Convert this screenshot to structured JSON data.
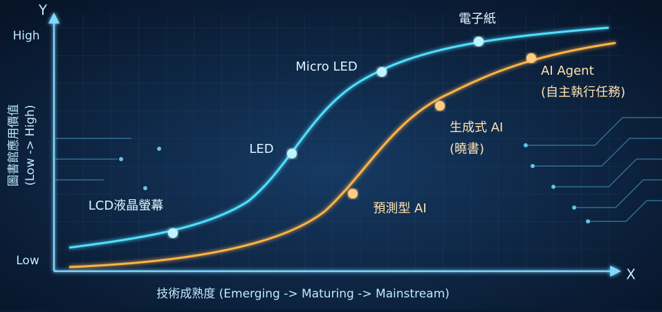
{
  "axes": {
    "y_symbol": "Y",
    "x_symbol": "X",
    "y_high": "High",
    "y_low": "Low",
    "y_title": "圖書館應用價值",
    "y_title_note": "(Low -> High)",
    "x_title": "技術成熟度 (Emerging -> Maturing -> Mainstream)"
  },
  "curves": [
    {
      "points": [
        {
          "label": [
            "LCD液晶螢幕"
          ]
        },
        {
          "label": [
            "LED"
          ]
        },
        {
          "label": [
            "Micro LED"
          ]
        },
        {
          "label": [
            "電子紙"
          ]
        }
      ]
    },
    {
      "points": [
        {
          "label": [
            "預測型 AI"
          ]
        },
        {
          "label": [
            "生成式 AI",
            "(曉書)"
          ]
        },
        {
          "label": [
            "AI Agent",
            "(自主執行任務)"
          ]
        }
      ]
    }
  ]
}
